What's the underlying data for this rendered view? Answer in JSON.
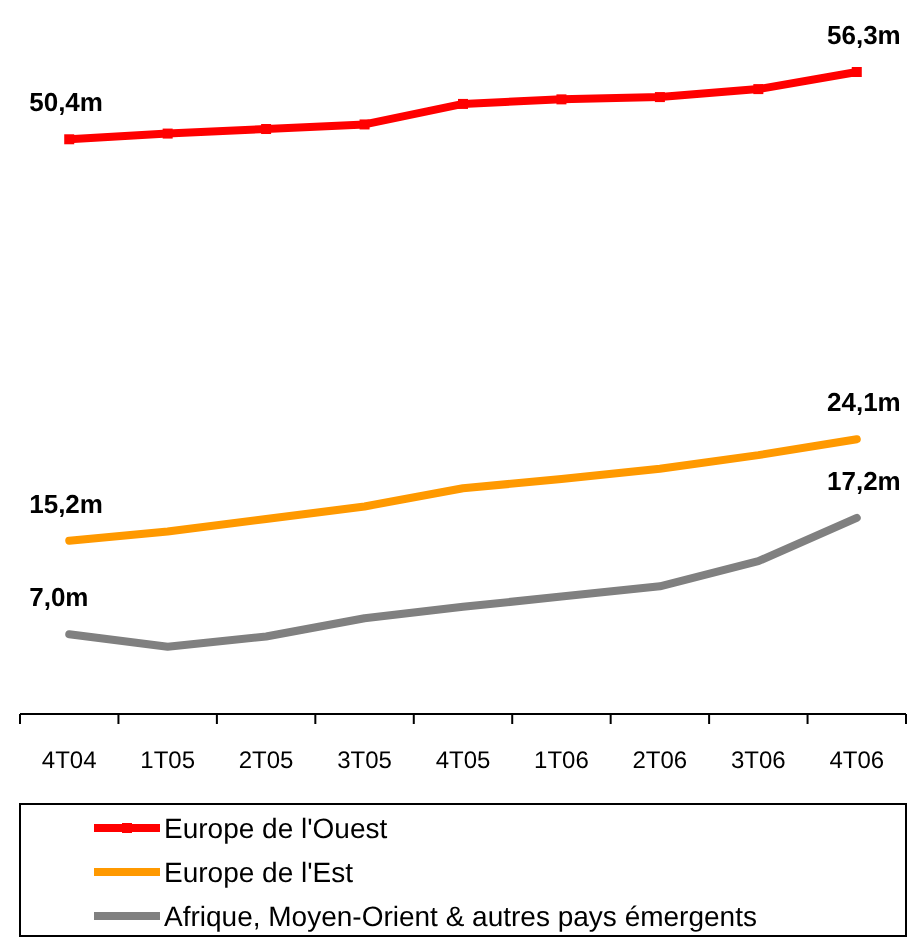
{
  "chart_data": {
    "type": "line",
    "categories": [
      "4T04",
      "1T05",
      "2T05",
      "3T05",
      "4T05",
      "1T06",
      "2T06",
      "3T06",
      "4T06"
    ],
    "series": [
      {
        "name": "Europe de l'Ouest",
        "color": "#ff0000",
        "marker": "square",
        "values": [
          50.4,
          50.9,
          51.3,
          51.7,
          53.5,
          53.9,
          54.1,
          54.8,
          56.3
        ],
        "value_labels": [
          "50,4m",
          null,
          null,
          null,
          null,
          null,
          null,
          null,
          "56,3m"
        ]
      },
      {
        "name": "Europe de l'Est",
        "color": "#ff9900",
        "marker": "none",
        "values": [
          15.2,
          16.0,
          17.1,
          18.2,
          19.8,
          20.6,
          21.5,
          22.7,
          24.1
        ],
        "value_labels": [
          "15,2m",
          null,
          null,
          null,
          null,
          null,
          null,
          null,
          "24,1m"
        ]
      },
      {
        "name": "Afrique, Moyen-Orient & autres pays émergents",
        "color": "#808080",
        "marker": "none",
        "values": [
          7.0,
          5.9,
          6.8,
          8.4,
          9.4,
          10.3,
          11.2,
          13.4,
          17.2
        ],
        "value_labels": [
          "7,0m",
          null,
          null,
          null,
          null,
          null,
          null,
          null,
          "17,2m"
        ]
      }
    ],
    "legend": "bottom",
    "grid": false
  }
}
